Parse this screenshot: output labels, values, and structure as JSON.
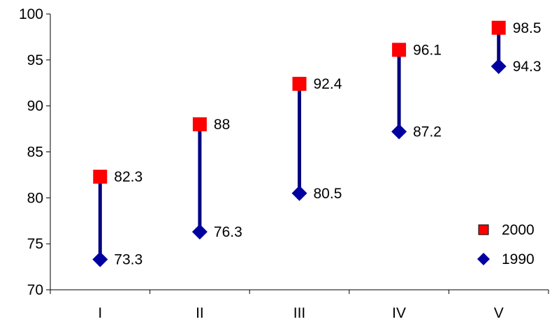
{
  "chart_data": {
    "type": "scatter",
    "categories": [
      "I",
      "II",
      "III",
      "IV",
      "V"
    ],
    "ylim": [
      70,
      100
    ],
    "yticks": [
      70,
      75,
      80,
      85,
      90,
      95,
      100
    ],
    "series": [
      {
        "name": "2000",
        "marker": "square",
        "color": "#ff0000",
        "values": [
          82.3,
          88,
          92.4,
          96.1,
          98.5
        ]
      },
      {
        "name": "1990",
        "marker": "diamond",
        "color": "#0000a0",
        "values": [
          73.3,
          76.3,
          80.5,
          87.2,
          94.3
        ]
      }
    ],
    "connector_color": "#000080",
    "legend_position": "bottom-right",
    "grid": false
  }
}
